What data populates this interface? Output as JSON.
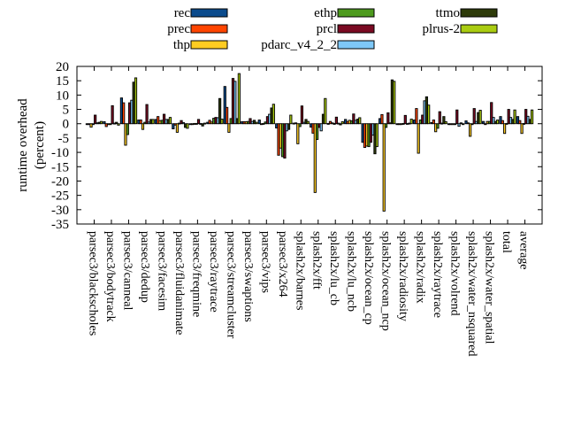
{
  "chart_data": {
    "type": "bar",
    "title": "",
    "xlabel": "",
    "ylabel_lines": [
      "runtime overhead",
      "(percent)"
    ],
    "ylim": [
      -35,
      20
    ],
    "yticks": [
      20,
      15,
      10,
      5,
      0,
      -5,
      -10,
      -15,
      -20,
      -25,
      -30,
      -35
    ],
    "grid": false,
    "legend_position": "top",
    "categories": [
      "parsec3/blackscholes",
      "parsec3/bodytrack",
      "parsec3/canneal",
      "parsec3/dedup",
      "parsec3/facesim",
      "parsec3/fluidanimate",
      "parsec3/freqmine",
      "parsec3/raytrace",
      "parsec3/streamcluster",
      "parsec3/swaptions",
      "parsec3/vips",
      "parsec3/x264",
      "splash2x/barnes",
      "splash2x/fft",
      "splash2x/lu_cb",
      "splash2x/lu_ncb",
      "splash2x/ocean_cp",
      "splash2x/ocean_ncp",
      "splash2x/radiosity",
      "splash2x/radix",
      "splash2x/raytrace",
      "splash2x/volrend",
      "splash2x/water_nsquared",
      "splash2x/water_spatial",
      "total",
      "average"
    ],
    "series": [
      {
        "name": "rec",
        "color": "#0b4b8c",
        "values": [
          -0.3,
          0.7,
          9,
          1.3,
          1.5,
          -1.8,
          -0.3,
          0.5,
          13,
          0.7,
          1.3,
          -1.5,
          0.2,
          -1.2,
          0.1,
          1.5,
          -6.5,
          1.8,
          -0.2,
          1.3,
          0.4,
          -0.2,
          1,
          0.8,
          2.5,
          2.5
        ]
      },
      {
        "name": "prec",
        "color": "#ff4500",
        "values": [
          -0.2,
          -1,
          7.3,
          1.3,
          2.5,
          -0.5,
          -0.3,
          1.2,
          5.7,
          0.7,
          -0.3,
          -11,
          0.3,
          -3.3,
          0.8,
          0.8,
          -8.3,
          3.2,
          -0.2,
          5.3,
          1.3,
          -0.2,
          0.3,
          -0.3,
          1.1,
          1.1
        ]
      },
      {
        "name": "thp",
        "color": "#ffcc22",
        "values": [
          -1.2,
          -0.3,
          -7.5,
          -2,
          1.1,
          -3,
          0.1,
          0.6,
          -3,
          0.7,
          0.1,
          -8.5,
          -7,
          -24,
          0.3,
          1.2,
          -7.8,
          -30.5,
          -0.2,
          -10.3,
          -2.8,
          -0.2,
          -4.4,
          0.8,
          -3.4,
          -3.4
        ]
      },
      {
        "name": "ethp",
        "color": "#4d9a1e",
        "values": [
          -0.3,
          -0.2,
          -3.8,
          0.5,
          1.2,
          0.2,
          0.1,
          1.9,
          1.8,
          0.8,
          0.6,
          -11.5,
          -1,
          -5.5,
          0.1,
          1,
          -8,
          -1.3,
          0.1,
          1.3,
          -1.6,
          -0.2,
          -0.3,
          0.8,
          0.1,
          0.1
        ]
      },
      {
        "name": "prcl",
        "color": "#7a0a22",
        "values": [
          3,
          6.3,
          7.3,
          6.7,
          3.3,
          1.1,
          1.5,
          2.2,
          15.8,
          1.8,
          2.5,
          -12,
          6.2,
          -1.3,
          2.3,
          3.4,
          -6.5,
          3.8,
          2.9,
          3,
          4.2,
          4.8,
          5.3,
          7.4,
          5,
          5
        ]
      },
      {
        "name": "pdarc_v4_2_2",
        "color": "#7ec8f8",
        "values": [
          0.3,
          0.2,
          8.2,
          0.6,
          1.5,
          0.4,
          0.1,
          2.1,
          14.8,
          0.8,
          3.3,
          -2.5,
          0.5,
          -2.5,
          0.2,
          1.2,
          -4,
          0.3,
          0.1,
          8,
          0.2,
          -0.9,
          0.8,
          2.2,
          2.2,
          2.6
        ]
      },
      {
        "name": "ttmo",
        "color": "#2e3b0a",
        "values": [
          0.5,
          0.5,
          14.5,
          1.5,
          1.5,
          -1.3,
          -0.8,
          8.8,
          1.8,
          1.2,
          5.5,
          -2,
          1.5,
          3.3,
          -0.4,
          1.6,
          -10.5,
          15.3,
          0.2,
          9.4,
          2.5,
          0.3,
          3.9,
          0.8,
          1.5,
          1.5
        ]
      },
      {
        "name": "plrus-2",
        "color": "#aacc11",
        "values": [
          0.8,
          -0.5,
          16,
          1.5,
          2.2,
          -1.6,
          0.2,
          1.6,
          17.5,
          0.5,
          6.8,
          3,
          0.8,
          8.8,
          0.7,
          2.1,
          -8,
          14.8,
          1.6,
          6.5,
          0.7,
          -0.2,
          4.7,
          1.3,
          4.8,
          4.8
        ]
      }
    ]
  }
}
